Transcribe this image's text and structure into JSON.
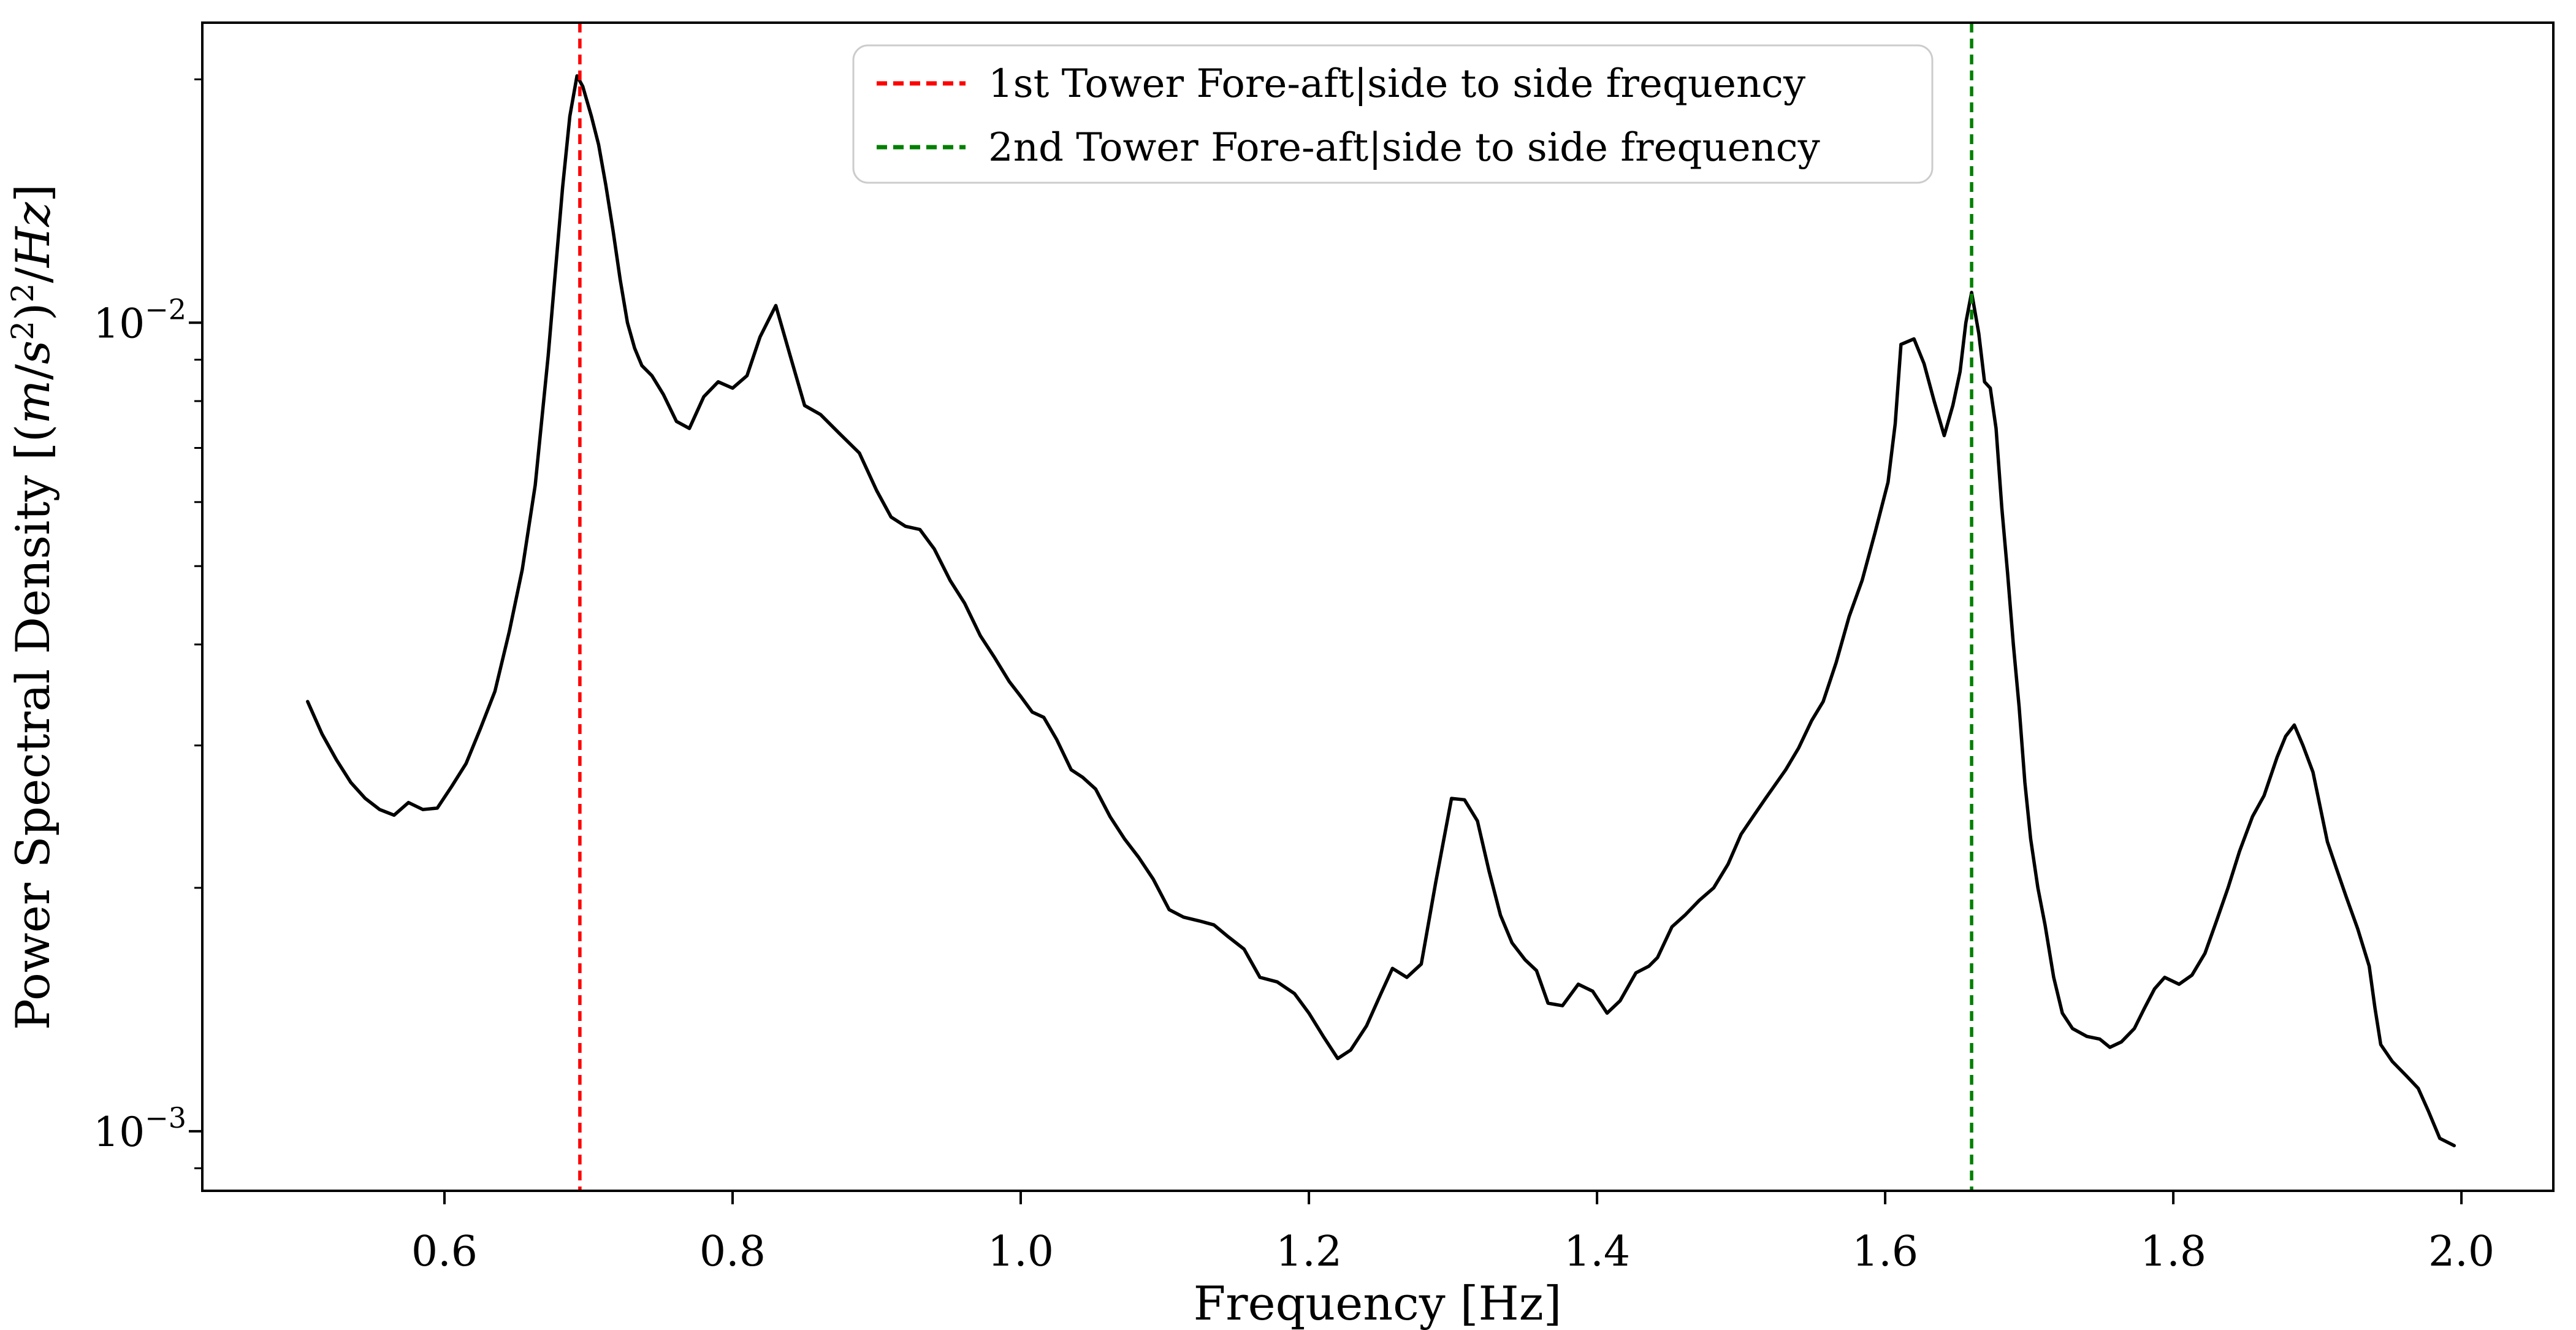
{
  "figure": {
    "background": "#ffffff",
    "xlabel": "Frequency [Hz]",
    "ylabel_plain": "Power Spectral Density [(m/s²)²/Hz]",
    "ylabel_segments": [
      {
        "t": "Power Spectral Density [("
      },
      {
        "t": "m",
        "italic": true
      },
      {
        "t": "/"
      },
      {
        "t": "s",
        "italic": true
      },
      {
        "t": "2",
        "sup": true
      },
      {
        "t": ")"
      },
      {
        "t": "2",
        "sup": true
      },
      {
        "t": "/"
      },
      {
        "t": "Hz",
        "italic": true
      },
      {
        "t": "]"
      }
    ]
  },
  "legend": {
    "entries": [
      {
        "label": "1st Tower Fore-aft|side to side frequency",
        "color": "#ff0000"
      },
      {
        "label": "2nd Tower Fore-aft|side to side frequency",
        "color": "#008000"
      }
    ]
  },
  "chart_data": {
    "type": "line",
    "title": "",
    "xlabel": "Frequency [Hz]",
    "ylabel": "Power Spectral Density [(m/s^2)^2/Hz]",
    "xlim": [
      0.4319,
      2.0638
    ],
    "ylim": [
      0.000844,
      0.0235
    ],
    "yscale": "log",
    "grid": false,
    "legend_position": "upper center",
    "x_ticks": [
      0.6,
      0.8,
      1.0,
      1.2,
      1.4,
      1.6,
      1.8,
      2.0
    ],
    "x_tick_labels": [
      "0.6",
      "0.8",
      "1.0",
      "1.2",
      "1.4",
      "1.6",
      "1.8",
      "2.0"
    ],
    "y_major_ticks": [
      {
        "value": 0.01,
        "base": "10",
        "exp": "−2"
      },
      {
        "value": 0.001,
        "base": "10",
        "exp": "−3"
      }
    ],
    "y_minor_ticks": [
      0.02,
      0.009,
      0.008,
      0.007,
      0.006,
      0.005,
      0.004,
      0.003,
      0.002,
      0.0009
    ],
    "vlines": [
      {
        "x": 0.694,
        "color": "#ff0000",
        "style": "dashed",
        "label": "1st Tower Fore-aft|side to side frequency"
      },
      {
        "x": 1.66,
        "color": "#008000",
        "style": "dashed",
        "label": "2nd Tower Fore-aft|side to side frequency"
      }
    ],
    "series": [
      {
        "name": "PSD",
        "color": "#000000",
        "points": [
          [
            0.505,
            0.0034
          ],
          [
            0.515,
            0.0031
          ],
          [
            0.525,
            0.00288
          ],
          [
            0.535,
            0.0027
          ],
          [
            0.545,
            0.00258
          ],
          [
            0.555,
            0.0025
          ],
          [
            0.565,
            0.00246
          ],
          [
            0.575,
            0.00255
          ],
          [
            0.585,
            0.0025
          ],
          [
            0.595,
            0.00251
          ],
          [
            0.605,
            0.00267
          ],
          [
            0.615,
            0.00285
          ],
          [
            0.625,
            0.00315
          ],
          [
            0.635,
            0.0035
          ],
          [
            0.645,
            0.00415
          ],
          [
            0.654,
            0.00495
          ],
          [
            0.663,
            0.0063
          ],
          [
            0.672,
            0.0091
          ],
          [
            0.682,
            0.0147
          ],
          [
            0.687,
            0.018
          ],
          [
            0.692,
            0.0202
          ],
          [
            0.696,
            0.0196
          ],
          [
            0.702,
            0.018
          ],
          [
            0.707,
            0.0166
          ],
          [
            0.712,
            0.0148
          ],
          [
            0.717,
            0.013
          ],
          [
            0.722,
            0.0113
          ],
          [
            0.727,
            0.01
          ],
          [
            0.732,
            0.0093
          ],
          [
            0.737,
            0.00885
          ],
          [
            0.744,
            0.0086
          ],
          [
            0.752,
            0.00815
          ],
          [
            0.761,
            0.00755
          ],
          [
            0.77,
            0.0074
          ],
          [
            0.78,
            0.0081
          ],
          [
            0.79,
            0.00845
          ],
          [
            0.8,
            0.0083
          ],
          [
            0.81,
            0.0086
          ],
          [
            0.819,
            0.0096
          ],
          [
            0.83,
            0.0105
          ],
          [
            0.84,
            0.0091
          ],
          [
            0.85,
            0.0079
          ],
          [
            0.861,
            0.0077
          ],
          [
            0.874,
            0.0073
          ],
          [
            0.888,
            0.0069
          ],
          [
            0.9,
            0.0062
          ],
          [
            0.91,
            0.00575
          ],
          [
            0.92,
            0.0056
          ],
          [
            0.93,
            0.00555
          ],
          [
            0.94,
            0.00525
          ],
          [
            0.951,
            0.0048
          ],
          [
            0.961,
            0.0045
          ],
          [
            0.972,
            0.0041
          ],
          [
            0.982,
            0.00385
          ],
          [
            0.992,
            0.0036
          ],
          [
            1.0,
            0.00345
          ],
          [
            1.008,
            0.0033
          ],
          [
            1.016,
            0.00325
          ],
          [
            1.025,
            0.00305
          ],
          [
            1.035,
            0.0028
          ],
          [
            1.043,
            0.00274
          ],
          [
            1.052,
            0.00265
          ],
          [
            1.062,
            0.00245
          ],
          [
            1.072,
            0.0023
          ],
          [
            1.082,
            0.00218
          ],
          [
            1.092,
            0.00205
          ],
          [
            1.103,
            0.00188
          ],
          [
            1.113,
            0.00184
          ],
          [
            1.124,
            0.00182
          ],
          [
            1.134,
            0.0018
          ],
          [
            1.144,
            0.00174
          ],
          [
            1.155,
            0.00168
          ],
          [
            1.166,
            0.00155
          ],
          [
            1.178,
            0.00153
          ],
          [
            1.19,
            0.00148
          ],
          [
            1.2,
            0.0014
          ],
          [
            1.21,
            0.00131
          ],
          [
            1.22,
            0.00123
          ],
          [
            1.229,
            0.00126
          ],
          [
            1.24,
            0.00135
          ],
          [
            1.25,
            0.00148
          ],
          [
            1.258,
            0.00159
          ],
          [
            1.268,
            0.00155
          ],
          [
            1.278,
            0.00161
          ],
          [
            1.288,
            0.00203
          ],
          [
            1.299,
            0.00258
          ],
          [
            1.308,
            0.00257
          ],
          [
            1.317,
            0.00242
          ],
          [
            1.325,
            0.0021
          ],
          [
            1.333,
            0.00185
          ],
          [
            1.341,
            0.00171
          ],
          [
            1.35,
            0.00163
          ],
          [
            1.358,
            0.00158
          ],
          [
            1.366,
            0.00144
          ],
          [
            1.376,
            0.00143
          ],
          [
            1.387,
            0.00152
          ],
          [
            1.397,
            0.00149
          ],
          [
            1.407,
            0.0014
          ],
          [
            1.416,
            0.00145
          ],
          [
            1.427,
            0.00157
          ],
          [
            1.436,
            0.0016
          ],
          [
            1.442,
            0.00164
          ],
          [
            1.452,
            0.00179
          ],
          [
            1.461,
            0.00185
          ],
          [
            1.471,
            0.00193
          ],
          [
            1.481,
            0.002
          ],
          [
            1.491,
            0.00214
          ],
          [
            1.5,
            0.00233
          ],
          [
            1.509,
            0.00246
          ],
          [
            1.517,
            0.00258
          ],
          [
            1.526,
            0.00272
          ],
          [
            1.531,
            0.0028
          ],
          [
            1.54,
            0.00298
          ],
          [
            1.549,
            0.00322
          ],
          [
            1.557,
            0.0034
          ],
          [
            1.566,
            0.0038
          ],
          [
            1.575,
            0.00433
          ],
          [
            1.584,
            0.0048
          ],
          [
            1.593,
            0.0055
          ],
          [
            1.602,
            0.00635
          ],
          [
            1.607,
            0.0075
          ],
          [
            1.611,
            0.0094
          ],
          [
            1.62,
            0.00955
          ],
          [
            1.627,
            0.0089
          ],
          [
            1.634,
            0.008
          ],
          [
            1.641,
            0.00725
          ],
          [
            1.647,
            0.0079
          ],
          [
            1.652,
            0.0087
          ],
          [
            1.656,
            0.01
          ],
          [
            1.66,
            0.0109
          ],
          [
            1.665,
            0.0097
          ],
          [
            1.669,
            0.00845
          ],
          [
            1.673,
            0.0083
          ],
          [
            1.677,
            0.0074
          ],
          [
            1.681,
            0.0059
          ],
          [
            1.685,
            0.0049
          ],
          [
            1.689,
            0.004
          ],
          [
            1.693,
            0.00335
          ],
          [
            1.697,
            0.0027
          ],
          [
            1.701,
            0.0023
          ],
          [
            1.706,
            0.002
          ],
          [
            1.711,
            0.0018
          ],
          [
            1.717,
            0.00155
          ],
          [
            1.723,
            0.0014
          ],
          [
            1.73,
            0.00134
          ],
          [
            1.74,
            0.00131
          ],
          [
            1.749,
            0.0013
          ],
          [
            1.756,
            0.00127
          ],
          [
            1.764,
            0.00129
          ],
          [
            1.773,
            0.00134
          ],
          [
            1.78,
            0.00142
          ],
          [
            1.787,
            0.0015
          ],
          [
            1.794,
            0.00155
          ],
          [
            1.804,
            0.00152
          ],
          [
            1.813,
            0.00156
          ],
          [
            1.822,
            0.00166
          ],
          [
            1.83,
            0.00182
          ],
          [
            1.838,
            0.002
          ],
          [
            1.846,
            0.00222
          ],
          [
            1.855,
            0.00245
          ],
          [
            1.863,
            0.0026
          ],
          [
            1.872,
            0.0029
          ],
          [
            1.878,
            0.00308
          ],
          [
            1.884,
            0.00318
          ],
          [
            1.89,
            0.003
          ],
          [
            1.897,
            0.00278
          ],
          [
            1.907,
            0.00228
          ],
          [
            1.913,
            0.00212
          ],
          [
            1.92,
            0.00195
          ],
          [
            1.928,
            0.00178
          ],
          [
            1.936,
            0.0016
          ],
          [
            1.94,
            0.00142
          ],
          [
            1.944,
            0.00128
          ],
          [
            1.952,
            0.00122
          ],
          [
            1.962,
            0.00117
          ],
          [
            1.97,
            0.00113
          ],
          [
            1.977,
            0.00106
          ],
          [
            1.985,
            0.00098
          ],
          [
            1.995,
            0.00096
          ]
        ]
      }
    ]
  }
}
